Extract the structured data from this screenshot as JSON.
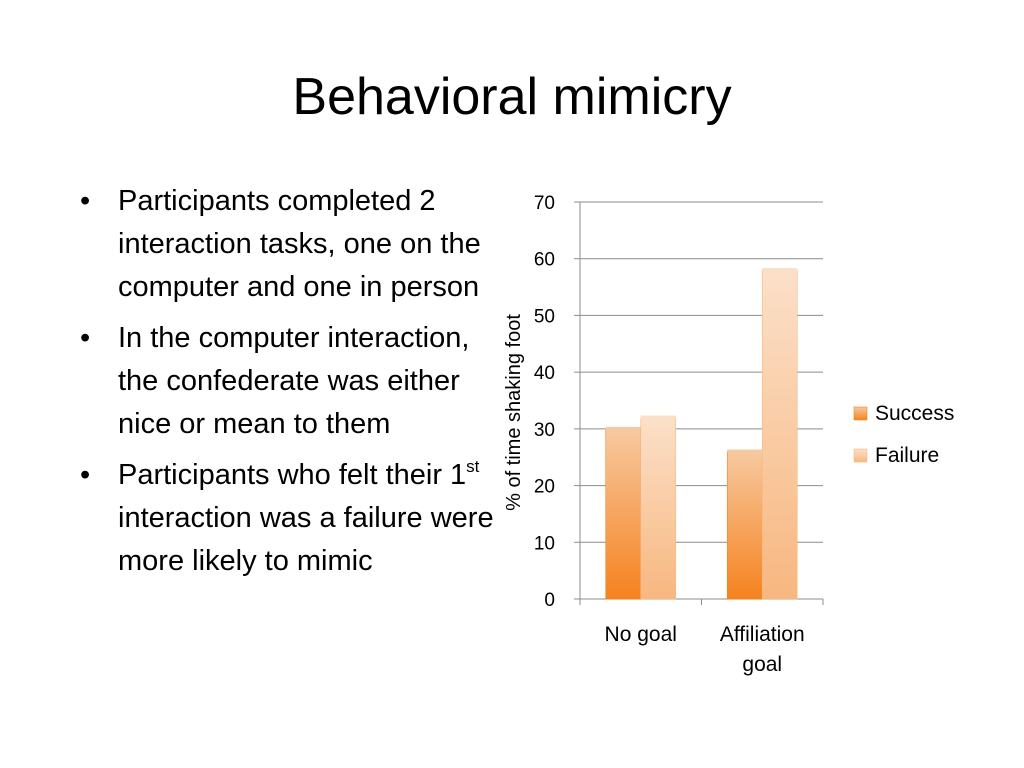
{
  "slide": {
    "title": "Behavioral mimicry",
    "bullet_symbol": "•",
    "bullets": [
      {
        "text": "Participants completed 2 interaction tasks, one on the computer and one in person"
      },
      {
        "text": "In the computer interaction, the confederate was either nice or mean to them"
      },
      {
        "text_before": "Participants who felt their 1",
        "superscript": "st",
        "text_after": " interaction was a failure were more likely to mimic"
      }
    ]
  },
  "chart_data": {
    "type": "bar",
    "title": "",
    "xlabel": "",
    "ylabel": "% of time shaking foot",
    "categories": [
      [
        "No goal"
      ],
      [
        "Affiliation",
        "goal"
      ]
    ],
    "series": [
      {
        "name": "Success",
        "values": [
          30,
          26
        ],
        "color_top": "#f7c9a0",
        "color_bottom": "#f5821f"
      },
      {
        "name": "Failure",
        "values": [
          32,
          58
        ],
        "color_top": "#fbe0c8",
        "color_bottom": "#f8b780"
      }
    ],
    "ylim": [
      0,
      70
    ],
    "yticks": [
      0,
      10,
      20,
      30,
      40,
      50,
      60,
      70
    ],
    "grid": true,
    "legend": "right"
  }
}
